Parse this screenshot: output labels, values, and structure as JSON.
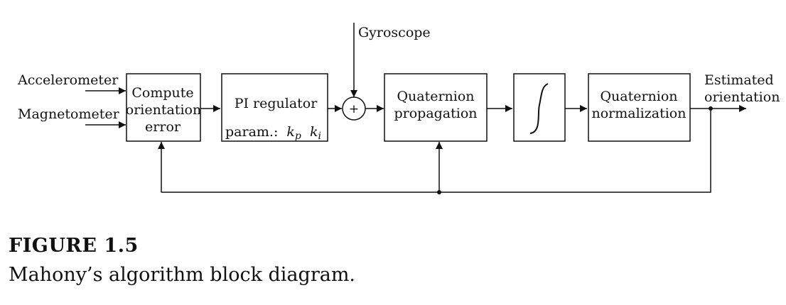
{
  "inputs": {
    "accelerometer": "Accelerometer",
    "magnetometer": "Magnetometer",
    "gyroscope": "Gyroscope"
  },
  "blocks": {
    "compute_error": [
      "Compute",
      "orientation",
      "error"
    ],
    "pi_regulator": {
      "title": "PI regulator",
      "param_prefix": "param.:",
      "kp_base": "k",
      "kp_sub": "p",
      "ki_base": "k",
      "ki_sub": "i"
    },
    "sum_symbol": "+",
    "quaternion_propagation": [
      "Quaternion",
      "propagation"
    ],
    "quaternion_normalization": [
      "Quaternion",
      "normalization"
    ]
  },
  "output": [
    "Estimated",
    "orientation"
  ],
  "caption": {
    "title": "FIGURE 1.5",
    "text": "Mahony’s algorithm block diagram."
  }
}
